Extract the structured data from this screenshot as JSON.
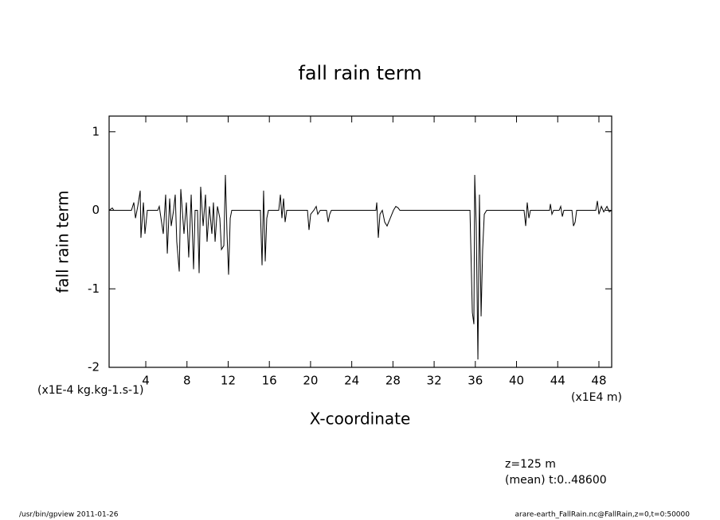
{
  "chart_data": {
    "type": "line",
    "title": "fall rain term",
    "y_label": "fall rain term",
    "x_label": "X-coordinate",
    "y_units": "(x1E-4 kg.kg-1.s-1)",
    "x_units": "(x1E4 m)",
    "annotations": [
      "z=125 m",
      "(mean) t:0..48600"
    ],
    "footer_left": "/usr/bin/gpview  2011-01-26",
    "footer_right": "arare-earth_FallRain.nc@FallRain,z=0,t=0:50000",
    "xlim": [
      0.44,
      49.24
    ],
    "ylim": [
      -2,
      1.2
    ],
    "xticks": [
      4,
      8,
      12,
      16,
      20,
      24,
      28,
      32,
      36,
      40,
      44,
      48
    ],
    "yticks": [
      -2,
      -1,
      0,
      1
    ],
    "color": "#000000",
    "x": [
      0.44,
      0.75,
      0.9,
      2.61,
      2.84,
      3.0,
      3.22,
      3.46,
      3.53,
      3.77,
      3.92,
      4.15,
      5.16,
      5.31,
      5.7,
      5.93,
      6.09,
      6.32,
      6.47,
      6.7,
      6.86,
      7.01,
      7.25,
      7.4,
      7.71,
      7.94,
      8.17,
      8.41,
      8.64,
      8.79,
      9.02,
      9.18,
      9.33,
      9.57,
      9.8,
      9.95,
      10.18,
      10.42,
      10.57,
      10.73,
      10.96,
      11.19,
      11.35,
      11.58,
      11.73,
      11.89,
      12.04,
      12.2,
      12.35,
      15.13,
      15.29,
      15.44,
      15.6,
      15.75,
      15.91,
      16.91,
      17.07,
      17.22,
      17.38,
      17.53,
      17.69,
      19.7,
      19.85,
      20.01,
      20.32,
      20.55,
      20.7,
      20.94,
      21.55,
      21.71,
      21.86,
      22.02,
      26.35,
      26.43,
      26.58,
      26.74,
      26.97,
      27.2,
      27.43,
      27.74,
      28.05,
      28.28,
      28.51,
      28.67,
      35.48,
      35.71,
      35.86,
      35.94,
      36.09,
      36.25,
      36.4,
      36.56,
      36.71,
      36.87,
      37.1,
      40.73,
      40.89,
      41.04,
      41.2,
      41.35,
      43.21,
      43.29,
      43.44,
      43.6,
      44.14,
      44.29,
      44.45,
      44.6,
      45.38,
      45.53,
      45.69,
      45.84,
      47.7,
      47.85,
      48.0,
      48.24,
      48.47,
      48.78,
      49.01,
      49.24
    ],
    "values": [
      0,
      0.03,
      0,
      0,
      0.1,
      -0.1,
      0.05,
      0.25,
      -0.35,
      0.1,
      -0.3,
      0,
      0,
      0.05,
      -0.3,
      0.2,
      -0.55,
      0.15,
      -0.2,
      0,
      0.2,
      -0.4,
      -0.78,
      0.27,
      -0.3,
      0.1,
      -0.6,
      0.2,
      -0.75,
      0,
      0,
      -0.8,
      0.3,
      -0.2,
      0.2,
      -0.4,
      0.05,
      -0.3,
      0.1,
      -0.4,
      0.05,
      -0.1,
      -0.5,
      -0.45,
      0.45,
      -0.3,
      -0.82,
      -0.1,
      0,
      0,
      -0.7,
      0.25,
      -0.65,
      -0.1,
      0,
      0,
      0.2,
      -0.1,
      0.15,
      -0.15,
      0,
      0,
      -0.25,
      -0.05,
      0,
      0.05,
      -0.05,
      0,
      0,
      -0.15,
      -0.05,
      0,
      0,
      0.1,
      -0.35,
      -0.05,
      0,
      -0.15,
      -0.2,
      -0.1,
      0,
      0.05,
      0.03,
      0,
      0,
      -1.3,
      -1.45,
      0.45,
      -0.2,
      -1.9,
      0.2,
      -1.35,
      -0.5,
      -0.05,
      0,
      0,
      -0.2,
      0.1,
      -0.1,
      0,
      0,
      0.08,
      -0.05,
      0,
      0,
      0.05,
      -0.08,
      0,
      0,
      -0.2,
      -0.15,
      0,
      0,
      0.12,
      -0.05,
      0.05,
      -0.02,
      0.05,
      -0.02,
      0
    ]
  }
}
